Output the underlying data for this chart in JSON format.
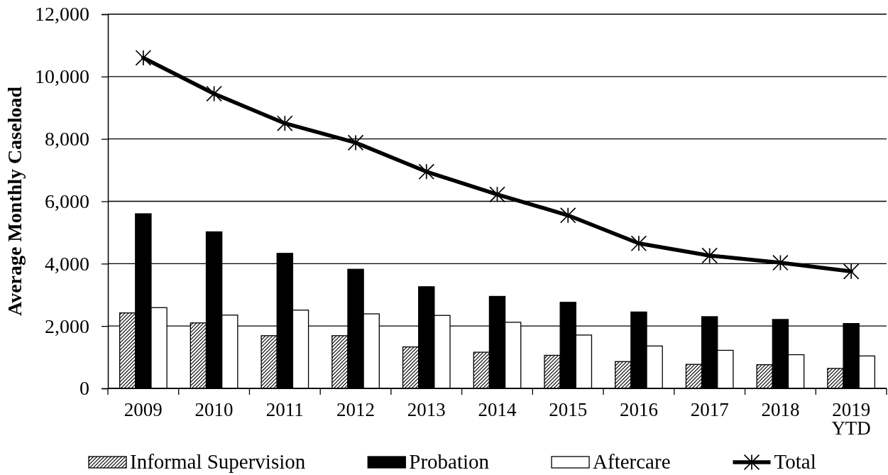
{
  "chart_data": {
    "type": "bar",
    "ylabel": "Average Monthly Caseload",
    "categories": [
      "2009",
      "2010",
      "2011",
      "2012",
      "2013",
      "2014",
      "2015",
      "2016",
      "2017",
      "2018",
      "2019\nYTD"
    ],
    "series": [
      {
        "name": "Informal Supervision",
        "color": "#000000",
        "values": [
          2420,
          2100,
          1690,
          1690,
          1330,
          1160,
          1060,
          860,
          770,
          760,
          640
        ]
      },
      {
        "name": "Probation",
        "color": "#000000",
        "values": [
          5600,
          5020,
          4330,
          3820,
          3260,
          2950,
          2760,
          2450,
          2300,
          2210,
          2080
        ]
      },
      {
        "name": "Aftercare",
        "color": "#ffffff",
        "values": [
          2590,
          2350,
          2510,
          2390,
          2340,
          2120,
          1710,
          1360,
          1220,
          1080,
          1040
        ]
      },
      {
        "name": "Total",
        "type": "line",
        "color": "#000000",
        "values": [
          10600,
          9450,
          8500,
          7880,
          6950,
          6220,
          5550,
          4650,
          4260,
          4030,
          3750
        ]
      }
    ],
    "ylim": [
      0,
      12000
    ],
    "yticks": [
      0,
      {
        "value": 2000,
        "label": "2,000"
      },
      {
        "value": 4000,
        "label": "4,000"
      },
      {
        "value": 6000,
        "label": "6,000"
      },
      {
        "value": 8000,
        "label": "8,000"
      },
      {
        "value": 10000,
        "label": "10,000"
      },
      {
        "value": 12000,
        "label": "12,000"
      }
    ],
    "grid": "y",
    "legend": "bottom",
    "marker": "star",
    "line_style": "solid"
  }
}
